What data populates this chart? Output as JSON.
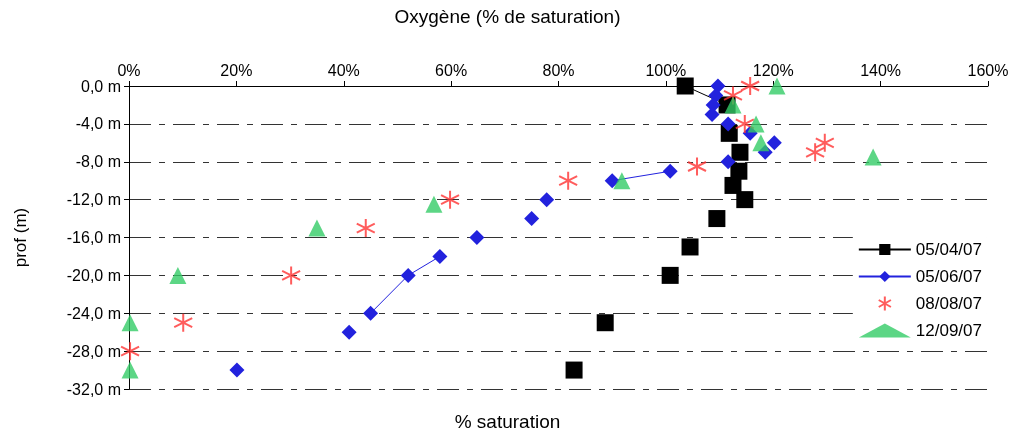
{
  "chart_data": {
    "type": "line",
    "title": "Oxygène (% de saturation)",
    "xlabel": "% saturation",
    "ylabel": "prof (m)",
    "xlim": [
      0,
      160
    ],
    "xticks": [
      {
        "value": 0,
        "label": "0%"
      },
      {
        "value": 20,
        "label": "20%"
      },
      {
        "value": 40,
        "label": "40%"
      },
      {
        "value": 60,
        "label": "60%"
      },
      {
        "value": 80,
        "label": "80%"
      },
      {
        "value": 100,
        "label": "100%"
      },
      {
        "value": 120,
        "label": "120%"
      },
      {
        "value": 140,
        "label": "140%"
      },
      {
        "value": 160,
        "label": "160%"
      }
    ],
    "ylim": [
      -32,
      0
    ],
    "yticks": [
      {
        "value": 0,
        "label": "0,0 m"
      },
      {
        "value": -4,
        "label": "-4,0 m"
      },
      {
        "value": -8,
        "label": "-8,0 m"
      },
      {
        "value": -12,
        "label": "-12,0 m"
      },
      {
        "value": -16,
        "label": "-16,0 m"
      },
      {
        "value": -20,
        "label": "-20,0 m"
      },
      {
        "value": -24,
        "label": "-24,0 m"
      },
      {
        "value": -28,
        "label": "-28,0 m"
      },
      {
        "value": -32,
        "label": "-32,0 m"
      }
    ],
    "grid": "y",
    "legend": "right",
    "line_style": "solid",
    "series": [
      {
        "name": "05/04/07",
        "color": "#000000",
        "marker": "square",
        "x": [
          103.6,
          111.4,
          null,
          111.8,
          null,
          113.8,
          null,
          113.6,
          null,
          112.5,
          null,
          114.7,
          null,
          109.5,
          null,
          104.5,
          null,
          100.8,
          null,
          88.7,
          null,
          82.9
        ],
        "values": [
          0,
          -2,
          null,
          -5,
          null,
          -7,
          null,
          -9,
          null,
          -10.5,
          null,
          -12,
          null,
          -14,
          null,
          -17,
          null,
          -20,
          null,
          -25,
          null,
          -30
        ]
      },
      {
        "name": "05/06/07",
        "color": "#2222dd",
        "marker": "diamond",
        "x": [
          109.7,
          109.3,
          108.8,
          108.6,
          null,
          111.6,
          null,
          115.7,
          null,
          120.2,
          null,
          118.5,
          null,
          111.6,
          null,
          100.8,
          90,
          null,
          77.8,
          null,
          75,
          null,
          64.8,
          null,
          57.9,
          52,
          45,
          null,
          41,
          null,
          20.1
        ],
        "values": [
          0,
          -1,
          -2,
          -3,
          null,
          -4,
          null,
          -5,
          null,
          -6,
          null,
          -7,
          null,
          -8,
          null,
          -9,
          -10,
          null,
          -12,
          null,
          -14,
          null,
          -16,
          null,
          -18,
          -20,
          -24,
          null,
          -26,
          null,
          -30
        ]
      },
      {
        "name": "08/08/07",
        "type": "scatter",
        "color": "#ff3333",
        "marker": "cross",
        "x": [
          115.7,
          112.5,
          114.7,
          129.6,
          127.8,
          105.8,
          81.8,
          59.8,
          44.1,
          30.2,
          10.1,
          0.2
        ],
        "values": [
          0,
          -1,
          -4,
          -6,
          -7,
          -8.5,
          -10,
          -12,
          -15,
          -20,
          -25,
          -28
        ]
      },
      {
        "name": "12/09/07",
        "type": "scatter",
        "color": "#33cc66",
        "marker": "triangle",
        "x": [
          120.7,
          112.5,
          116.8,
          117.7,
          138.6,
          91.8,
          56.8,
          35,
          9.1,
          0.2,
          0.2
        ],
        "values": [
          0,
          -2,
          -4,
          -6,
          -7.5,
          -10,
          -12.5,
          -15,
          -20,
          -25,
          -30
        ]
      }
    ]
  }
}
